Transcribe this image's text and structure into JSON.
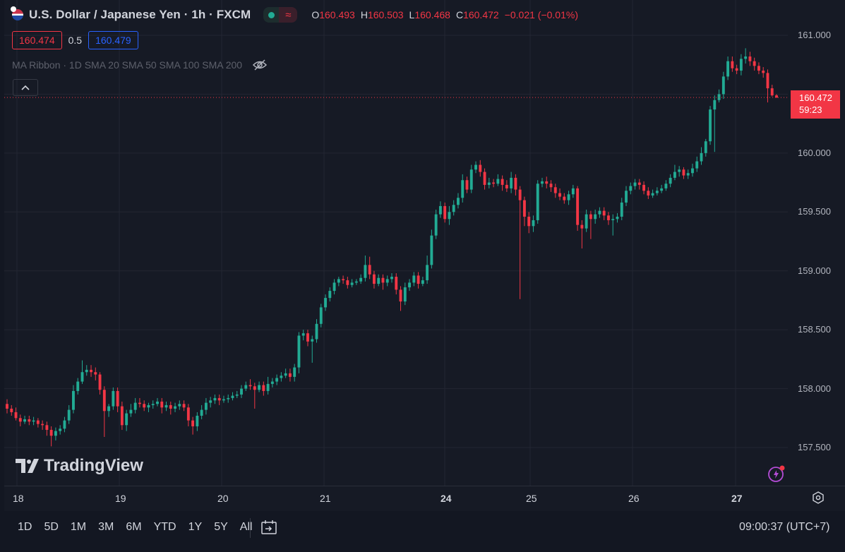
{
  "header": {
    "symbol_title": "U.S. Dollar / Japanese Yen · 1h · FXCM",
    "ohlc": [
      {
        "key": "O",
        "value": "160.493"
      },
      {
        "key": "H",
        "value": "160.503"
      },
      {
        "key": "L",
        "value": "160.468"
      },
      {
        "key": "C",
        "value": "160.472"
      }
    ],
    "change": "−0.021 (−0.01%)",
    "market_status_color": "#22ab94"
  },
  "bidask": {
    "bid": "160.474",
    "spread": "0.5",
    "ask": "160.479"
  },
  "indicator": {
    "label": "MA Ribbon · 1D SMA 20 SMA 50 SMA 100 SMA 200",
    "icon": "eye-off-icon"
  },
  "last_price": {
    "price": "160.472",
    "countdown": "59:23"
  },
  "watermark": "TradingView",
  "ranges": [
    "1D",
    "5D",
    "1M",
    "3M",
    "6M",
    "YTD",
    "1Y",
    "5Y",
    "All"
  ],
  "clock": "09:00:37 (UTC+7)",
  "colors": {
    "up": "#22ab94",
    "down": "#f23645",
    "background": "#161a25",
    "grid": "#232632"
  },
  "chart_data": {
    "type": "candlestick",
    "y_ticks": [
      "161.000",
      "160.500",
      "160.000",
      "159.500",
      "159.000",
      "158.500",
      "158.000",
      "157.500"
    ],
    "y_tick_values": [
      161.0,
      160.5,
      160.0,
      159.5,
      159.0,
      158.5,
      158.0,
      157.5
    ],
    "x_ticks": [
      "18",
      "19",
      "20",
      "21",
      "24",
      "25",
      "26",
      "27"
    ],
    "x_tick_bold": [
      false,
      false,
      false,
      false,
      true,
      false,
      false,
      true
    ],
    "ylim": [
      157.0,
      161.15
    ],
    "candles": [
      [
        157.87,
        157.83,
        157.91,
        157.79
      ],
      [
        157.83,
        157.8,
        157.86,
        157.77
      ],
      [
        157.8,
        157.75,
        157.84,
        157.73
      ],
      [
        157.75,
        157.72,
        157.78,
        157.68
      ],
      [
        157.72,
        157.74,
        157.77,
        157.7
      ],
      [
        157.74,
        157.72,
        157.77,
        157.69
      ],
      [
        157.72,
        157.73,
        157.76,
        157.69
      ],
      [
        157.73,
        157.7,
        157.75,
        157.67
      ],
      [
        157.7,
        157.69,
        157.73,
        157.65
      ],
      [
        157.69,
        157.65,
        157.72,
        157.6
      ],
      [
        157.65,
        157.6,
        157.68,
        157.51
      ],
      [
        157.6,
        157.64,
        157.67,
        157.56
      ],
      [
        157.64,
        157.66,
        157.69,
        157.61
      ],
      [
        157.66,
        157.73,
        157.76,
        157.63
      ],
      [
        157.73,
        157.82,
        157.86,
        157.7
      ],
      [
        157.82,
        157.98,
        158.03,
        157.79
      ],
      [
        157.98,
        158.06,
        158.09,
        157.95
      ],
      [
        158.06,
        158.14,
        158.24,
        158.04
      ],
      [
        158.14,
        158.16,
        158.2,
        158.11
      ],
      [
        158.16,
        158.14,
        158.2,
        158.1
      ],
      [
        158.14,
        158.12,
        158.18,
        158.07
      ],
      [
        158.12,
        157.99,
        158.14,
        157.95
      ],
      [
        157.99,
        157.81,
        158.02,
        157.59
      ],
      [
        157.81,
        157.85,
        157.87,
        157.76
      ],
      [
        157.85,
        157.98,
        158.01,
        157.82
      ],
      [
        157.98,
        157.85,
        158.01,
        157.8
      ],
      [
        157.85,
        157.69,
        157.89,
        157.65
      ],
      [
        157.69,
        157.79,
        157.82,
        157.64
      ],
      [
        157.79,
        157.82,
        157.87,
        157.76
      ],
      [
        157.82,
        157.88,
        157.92,
        157.79
      ],
      [
        157.88,
        157.87,
        157.92,
        157.84
      ],
      [
        157.87,
        157.84,
        157.9,
        157.81
      ],
      [
        157.84,
        157.86,
        157.88,
        157.8
      ],
      [
        157.86,
        157.87,
        157.9,
        157.83
      ],
      [
        157.87,
        157.89,
        157.92,
        157.85
      ],
      [
        157.89,
        157.84,
        157.92,
        157.79
      ],
      [
        157.84,
        157.86,
        157.89,
        157.81
      ],
      [
        157.86,
        157.83,
        157.89,
        157.78
      ],
      [
        157.83,
        157.85,
        157.88,
        157.8
      ],
      [
        157.85,
        157.87,
        157.9,
        157.82
      ],
      [
        157.87,
        157.84,
        157.9,
        157.81
      ],
      [
        157.84,
        157.73,
        157.87,
        157.68
      ],
      [
        157.73,
        157.68,
        157.76,
        157.61
      ],
      [
        157.68,
        157.77,
        157.8,
        157.64
      ],
      [
        157.77,
        157.82,
        157.86,
        157.74
      ],
      [
        157.82,
        157.88,
        157.92,
        157.78
      ],
      [
        157.88,
        157.9,
        157.93,
        157.84
      ],
      [
        157.9,
        157.92,
        157.95,
        157.87
      ],
      [
        157.92,
        157.9,
        157.95,
        157.86
      ],
      [
        157.9,
        157.91,
        157.94,
        157.88
      ],
      [
        157.91,
        157.92,
        157.95,
        157.88
      ],
      [
        157.92,
        157.94,
        157.97,
        157.9
      ],
      [
        157.94,
        157.95,
        157.98,
        157.92
      ],
      [
        157.95,
        158.0,
        158.03,
        157.92
      ],
      [
        158.0,
        158.03,
        158.06,
        157.98
      ],
      [
        158.03,
        158.02,
        158.08,
        157.99
      ],
      [
        158.02,
        157.99,
        158.05,
        157.83
      ],
      [
        157.99,
        158.03,
        158.06,
        157.97
      ],
      [
        158.03,
        157.98,
        158.06,
        157.94
      ],
      [
        157.98,
        158.04,
        158.1,
        157.95
      ],
      [
        158.04,
        158.06,
        158.09,
        158.01
      ],
      [
        158.06,
        158.09,
        158.12,
        158.03
      ],
      [
        158.09,
        158.11,
        158.14,
        158.06
      ],
      [
        158.11,
        158.13,
        158.17,
        158.09
      ],
      [
        158.13,
        158.1,
        158.17,
        158.06
      ],
      [
        158.1,
        158.18,
        158.21,
        158.06
      ],
      [
        158.18,
        158.45,
        158.48,
        158.13
      ],
      [
        158.45,
        158.47,
        158.5,
        158.41
      ],
      [
        158.47,
        158.4,
        158.5,
        158.36
      ],
      [
        158.4,
        158.42,
        158.45,
        158.22
      ],
      [
        158.42,
        158.55,
        158.59,
        158.39
      ],
      [
        158.55,
        158.69,
        158.72,
        158.52
      ],
      [
        158.69,
        158.77,
        158.8,
        158.66
      ],
      [
        158.77,
        158.83,
        158.86,
        158.74
      ],
      [
        158.83,
        158.9,
        158.93,
        158.8
      ],
      [
        158.9,
        158.93,
        158.95,
        158.87
      ],
      [
        158.93,
        158.92,
        158.96,
        158.89
      ],
      [
        158.92,
        158.88,
        158.95,
        158.85
      ],
      [
        158.88,
        158.9,
        158.93,
        158.86
      ],
      [
        158.9,
        158.91,
        158.93,
        158.88
      ],
      [
        158.91,
        158.94,
        158.97,
        158.89
      ],
      [
        158.94,
        159.05,
        159.13,
        158.91
      ],
      [
        159.05,
        158.97,
        159.12,
        158.93
      ],
      [
        158.97,
        158.89,
        159.0,
        158.85
      ],
      [
        158.89,
        158.94,
        158.97,
        158.87
      ],
      [
        158.94,
        158.9,
        158.97,
        158.84
      ],
      [
        158.9,
        158.93,
        158.96,
        158.87
      ],
      [
        158.93,
        158.95,
        158.98,
        158.9
      ],
      [
        158.95,
        158.84,
        158.98,
        158.8
      ],
      [
        158.84,
        158.74,
        158.87,
        158.66
      ],
      [
        158.74,
        158.86,
        158.9,
        158.71
      ],
      [
        158.86,
        158.9,
        158.93,
        158.83
      ],
      [
        158.9,
        158.96,
        158.99,
        158.87
      ],
      [
        158.96,
        158.89,
        158.99,
        158.85
      ],
      [
        158.89,
        158.92,
        158.95,
        158.87
      ],
      [
        158.92,
        159.05,
        159.13,
        158.89
      ],
      [
        159.05,
        159.3,
        159.35,
        159.02
      ],
      [
        159.3,
        159.48,
        159.52,
        159.27
      ],
      [
        159.48,
        159.55,
        159.59,
        159.45
      ],
      [
        159.55,
        159.44,
        159.58,
        159.41
      ],
      [
        159.44,
        159.5,
        159.55,
        159.39
      ],
      [
        159.5,
        159.56,
        159.6,
        159.47
      ],
      [
        159.56,
        159.62,
        159.66,
        159.53
      ],
      [
        159.62,
        159.77,
        159.82,
        159.58
      ],
      [
        159.77,
        159.69,
        159.8,
        159.66
      ],
      [
        159.69,
        159.86,
        159.9,
        159.66
      ],
      [
        159.86,
        159.9,
        159.93,
        159.83
      ],
      [
        159.9,
        159.84,
        159.94,
        159.8
      ],
      [
        159.84,
        159.73,
        159.87,
        159.69
      ],
      [
        159.73,
        159.75,
        159.79,
        159.7
      ],
      [
        159.75,
        159.74,
        159.78,
        159.71
      ],
      [
        159.74,
        159.78,
        159.82,
        159.72
      ],
      [
        159.78,
        159.73,
        159.81,
        159.68
      ],
      [
        159.73,
        159.7,
        159.77,
        159.67
      ],
      [
        159.7,
        159.79,
        159.84,
        159.66
      ],
      [
        159.79,
        159.69,
        159.82,
        159.64
      ],
      [
        159.69,
        159.6,
        159.72,
        158.76
      ],
      [
        159.6,
        159.46,
        159.63,
        159.38
      ],
      [
        159.46,
        159.38,
        159.5,
        159.32
      ],
      [
        159.38,
        159.43,
        159.47,
        159.33
      ],
      [
        159.43,
        159.74,
        159.77,
        159.4
      ],
      [
        159.74,
        159.76,
        159.79,
        159.71
      ],
      [
        159.76,
        159.74,
        159.8,
        159.7
      ],
      [
        159.74,
        159.71,
        159.77,
        159.67
      ],
      [
        159.71,
        159.66,
        159.74,
        159.62
      ],
      [
        159.66,
        159.63,
        159.7,
        159.6
      ],
      [
        159.63,
        159.6,
        159.66,
        159.57
      ],
      [
        159.6,
        159.65,
        159.68,
        159.56
      ],
      [
        159.65,
        159.7,
        159.73,
        159.62
      ],
      [
        159.7,
        159.39,
        159.72,
        159.34
      ],
      [
        159.39,
        159.36,
        159.43,
        159.19
      ],
      [
        159.36,
        159.48,
        159.52,
        159.33
      ],
      [
        159.48,
        159.44,
        159.51,
        159.27
      ],
      [
        159.44,
        159.48,
        159.52,
        159.4
      ],
      [
        159.48,
        159.51,
        159.54,
        159.45
      ],
      [
        159.51,
        159.47,
        159.54,
        159.43
      ],
      [
        159.47,
        159.43,
        159.5,
        159.39
      ],
      [
        159.43,
        159.44,
        159.48,
        159.3
      ],
      [
        159.44,
        159.46,
        159.49,
        159.41
      ],
      [
        159.46,
        159.58,
        159.62,
        159.43
      ],
      [
        159.58,
        159.68,
        159.72,
        159.55
      ],
      [
        159.68,
        159.72,
        159.75,
        159.65
      ],
      [
        159.72,
        159.75,
        159.78,
        159.69
      ],
      [
        159.75,
        159.73,
        159.78,
        159.69
      ],
      [
        159.73,
        159.68,
        159.76,
        159.65
      ],
      [
        159.68,
        159.64,
        159.71,
        159.61
      ],
      [
        159.64,
        159.66,
        159.69,
        159.62
      ],
      [
        159.66,
        159.68,
        159.71,
        159.64
      ],
      [
        159.68,
        159.7,
        159.73,
        159.66
      ],
      [
        159.7,
        159.74,
        159.77,
        159.68
      ],
      [
        159.74,
        159.79,
        159.82,
        159.71
      ],
      [
        159.79,
        159.84,
        159.9,
        159.77
      ],
      [
        159.84,
        159.86,
        159.89,
        159.8
      ],
      [
        159.86,
        159.81,
        159.88,
        159.78
      ],
      [
        159.81,
        159.83,
        159.86,
        159.78
      ],
      [
        159.83,
        159.87,
        159.91,
        159.8
      ],
      [
        159.87,
        159.93,
        159.97,
        159.84
      ],
      [
        159.93,
        160.0,
        160.05,
        159.9
      ],
      [
        160.0,
        160.1,
        160.12,
        159.97
      ],
      [
        160.1,
        160.37,
        160.4,
        160.07
      ],
      [
        160.37,
        160.45,
        160.49,
        160.01
      ],
      [
        160.45,
        160.5,
        160.54,
        160.43
      ],
      [
        160.5,
        160.65,
        160.69,
        160.46
      ],
      [
        160.65,
        160.78,
        160.82,
        160.62
      ],
      [
        160.78,
        160.72,
        160.82,
        160.69
      ],
      [
        160.72,
        160.7,
        160.75,
        160.67
      ],
      [
        160.7,
        160.8,
        160.84,
        160.66
      ],
      [
        160.8,
        160.82,
        160.89,
        160.76
      ],
      [
        160.82,
        160.78,
        160.86,
        160.74
      ],
      [
        160.78,
        160.74,
        160.81,
        160.7
      ],
      [
        160.74,
        160.7,
        160.77,
        160.67
      ],
      [
        160.7,
        160.68,
        160.73,
        160.64
      ],
      [
        160.68,
        160.55,
        160.71,
        160.43
      ],
      [
        160.55,
        160.49,
        160.58,
        160.48
      ],
      [
        160.49,
        160.47,
        160.5,
        160.47
      ]
    ]
  }
}
